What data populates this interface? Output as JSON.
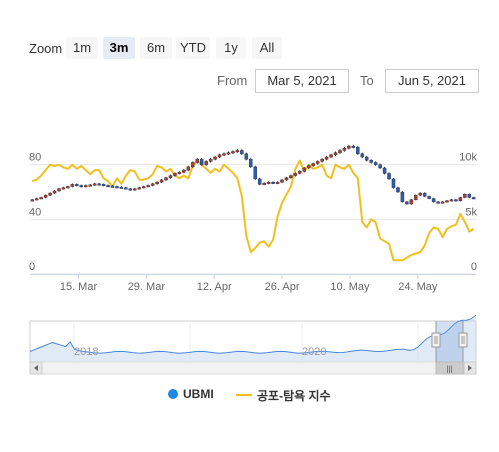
{
  "range_selector": {
    "zoom_label": "Zoom",
    "buttons": [
      {
        "label": "1m",
        "selected": false
      },
      {
        "label": "3m",
        "selected": true
      },
      {
        "label": "6m",
        "selected": false
      },
      {
        "label": "YTD",
        "selected": false
      },
      {
        "label": "1y",
        "selected": false
      },
      {
        "label": "All",
        "selected": false
      }
    ],
    "from_label": "From",
    "from_value": "Mar 5, 2021",
    "to_label": "To",
    "to_value": "Jun 5, 2021"
  },
  "navigator": {
    "year_labels": [
      "2018",
      "2020"
    ],
    "scroll_grip": "|||"
  },
  "colors": {
    "candle_up": "#b03a3a",
    "candle_down": "#2b5bb5",
    "index_line": "#f2c01e",
    "navigator_fill": "#c4d8f2",
    "navigator_line": "#4a86d9",
    "legend_ubmi": "#1e88e5"
  },
  "legend": {
    "ubmi_label": "UBMI",
    "index_label": "공포-탐욕 지수"
  },
  "chart_data": {
    "type": "line",
    "x_start": "2021-03-05",
    "x_end": "2021-06-05",
    "x_ticks": [
      "15. Mar",
      "29. Mar",
      "12. Apr",
      "26. Apr",
      "10. May",
      "24. May"
    ],
    "left_axis": {
      "ticks": [
        "0",
        "40",
        "80"
      ],
      "range": [
        0,
        120
      ]
    },
    "right_axis": {
      "ticks": [
        "0",
        "5k",
        "10k"
      ],
      "range": [
        0,
        15000
      ]
    },
    "series": [
      {
        "name": "UBMI",
        "kind": "candlestick",
        "axis": "right",
        "values": [
          [
            6700,
            6800
          ],
          [
            6800,
            6900
          ],
          [
            6900,
            7000
          ],
          [
            7000,
            7200
          ],
          [
            7200,
            7400
          ],
          [
            7400,
            7600
          ],
          [
            7600,
            7800
          ],
          [
            7800,
            7900
          ],
          [
            7900,
            8000
          ],
          [
            8000,
            8200
          ],
          [
            8200,
            8100
          ],
          [
            8100,
            8000
          ],
          [
            8000,
            8100
          ],
          [
            8100,
            8150
          ],
          [
            8150,
            8250
          ],
          [
            8250,
            8200
          ],
          [
            8200,
            8100
          ],
          [
            8100,
            8050
          ],
          [
            8050,
            8000
          ],
          [
            8000,
            7950
          ],
          [
            7950,
            7900
          ],
          [
            7900,
            7800
          ],
          [
            7800,
            7700
          ],
          [
            7700,
            7800
          ],
          [
            7800,
            7900
          ],
          [
            7900,
            8000
          ],
          [
            8000,
            8100
          ],
          [
            8100,
            8250
          ],
          [
            8250,
            8400
          ],
          [
            8400,
            8600
          ],
          [
            8600,
            8800
          ],
          [
            8800,
            9000
          ],
          [
            9000,
            9200
          ],
          [
            9200,
            9300
          ],
          [
            9300,
            9500
          ],
          [
            9500,
            9800
          ],
          [
            9800,
            10200
          ],
          [
            10200,
            10500
          ],
          [
            10500,
            10000
          ],
          [
            10000,
            10300
          ],
          [
            10300,
            10500
          ],
          [
            10500,
            10700
          ],
          [
            10700,
            10900
          ],
          [
            10900,
            11000
          ],
          [
            11000,
            11100
          ],
          [
            11100,
            11200
          ],
          [
            11200,
            11300
          ],
          [
            11300,
            11000
          ],
          [
            11000,
            10500
          ],
          [
            10500,
            9800
          ],
          [
            9800,
            8700
          ],
          [
            8700,
            8200
          ],
          [
            8200,
            8300
          ],
          [
            8300,
            8400
          ],
          [
            8400,
            8300
          ],
          [
            8300,
            8400
          ],
          [
            8400,
            8600
          ],
          [
            8600,
            8800
          ],
          [
            8800,
            9000
          ],
          [
            9000,
            9200
          ],
          [
            9200,
            9400
          ],
          [
            9400,
            9700
          ],
          [
            9700,
            9900
          ],
          [
            9900,
            10100
          ],
          [
            10100,
            10300
          ],
          [
            10300,
            10500
          ],
          [
            10500,
            10700
          ],
          [
            10700,
            10900
          ],
          [
            10900,
            11100
          ],
          [
            11100,
            11300
          ],
          [
            11300,
            11500
          ],
          [
            11500,
            11700
          ],
          [
            11700,
            11600
          ],
          [
            11600,
            11000
          ],
          [
            11000,
            10700
          ],
          [
            10700,
            10400
          ],
          [
            10400,
            10200
          ],
          [
            10200,
            10000
          ],
          [
            10000,
            9700
          ],
          [
            9700,
            9200
          ],
          [
            9200,
            8700
          ],
          [
            8700,
            7900
          ],
          [
            7900,
            7500
          ],
          [
            7500,
            6600
          ],
          [
            6600,
            6400
          ],
          [
            6400,
            6800
          ],
          [
            6800,
            7200
          ],
          [
            7200,
            7400
          ],
          [
            7400,
            7100
          ],
          [
            7100,
            6900
          ],
          [
            6900,
            6600
          ],
          [
            6600,
            6500
          ],
          [
            6500,
            6600
          ],
          [
            6600,
            6700
          ],
          [
            6700,
            6800
          ],
          [
            6800,
            6700
          ],
          [
            6700,
            7000
          ],
          [
            7000,
            7300
          ],
          [
            7300,
            7000
          ],
          [
            7000,
            6900
          ]
        ]
      },
      {
        "name": "공포-탐욕 지수",
        "kind": "line",
        "axis": "left",
        "values": [
          68,
          69,
          72,
          76,
          80,
          79,
          80,
          78,
          77,
          80,
          77,
          79,
          76,
          73,
          76,
          76,
          70,
          68,
          64,
          70,
          66,
          72,
          76,
          75,
          69,
          69,
          70,
          73,
          79,
          78,
          75,
          77,
          72,
          70,
          72,
          70,
          79,
          83,
          80,
          77,
          74,
          77,
          75,
          80,
          77,
          74,
          70,
          57,
          28,
          16,
          19,
          23,
          24,
          20,
          25,
          42,
          52,
          58,
          64,
          77,
          83,
          75,
          80,
          77,
          78,
          80,
          72,
          70,
          80,
          78,
          77,
          80,
          74,
          70,
          38,
          34,
          40,
          38,
          26,
          24,
          22,
          10,
          10,
          10,
          12,
          14,
          15,
          16,
          21,
          30,
          34,
          33,
          27,
          33,
          35,
          36,
          44,
          38,
          31,
          33
        ]
      }
    ]
  }
}
